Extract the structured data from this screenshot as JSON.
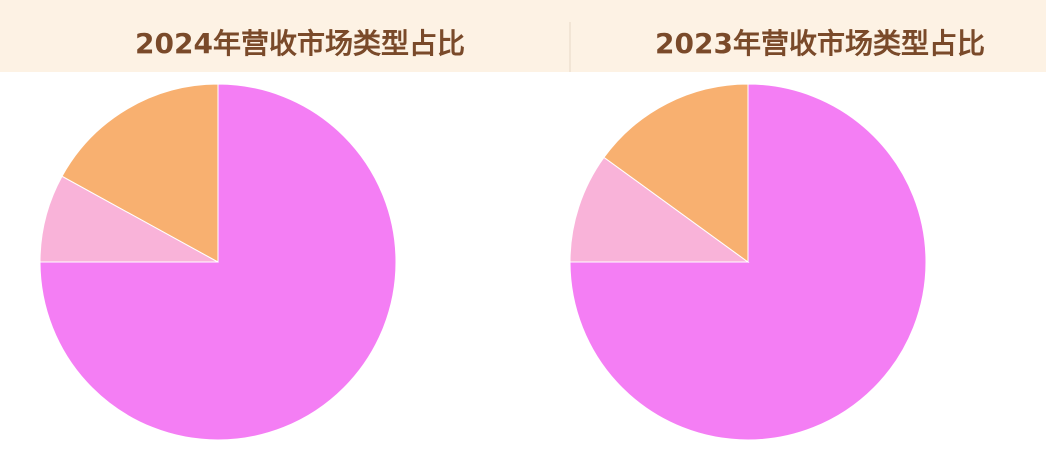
{
  "chart_data": [
    {
      "type": "pie",
      "title": "2024年营收市场类型占比",
      "values": [
        75,
        8,
        17
      ],
      "colors": [
        "#f47ef4",
        "#f9b3d9",
        "#f8b070"
      ]
    },
    {
      "type": "pie",
      "title": "2023年营收市场类型占比",
      "values": [
        75,
        10,
        15
      ],
      "colors": [
        "#f47ef4",
        "#f9b3d9",
        "#f8b070"
      ]
    }
  ]
}
